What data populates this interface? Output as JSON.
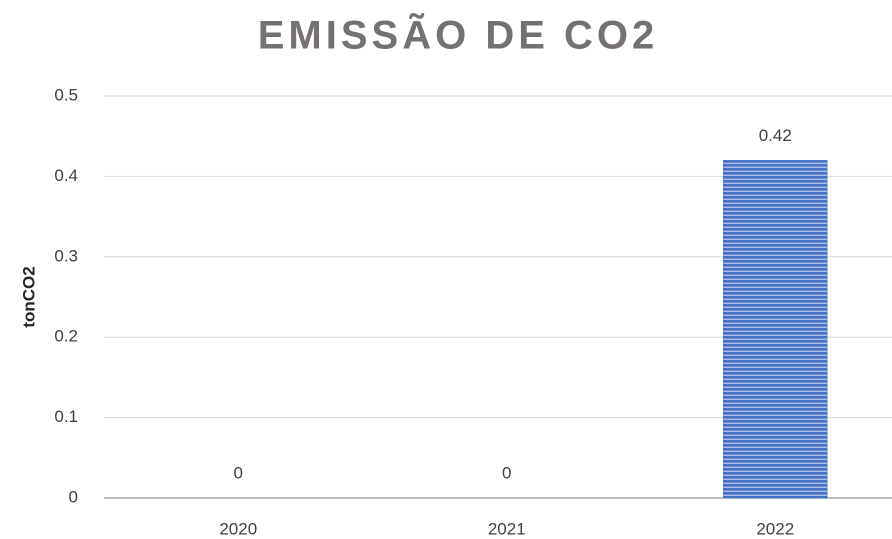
{
  "chart_data": {
    "type": "bar",
    "title": "EMISSÃO DE CO2",
    "y_label": "tonCO2",
    "categories": [
      "2020",
      "2021",
      "2022"
    ],
    "values": [
      0,
      0,
      0.42
    ],
    "color": "#4472c4",
    "ylim": [
      0,
      0.5
    ],
    "yticks": [
      0,
      0.1,
      0.2,
      0.3,
      0.4,
      0.5
    ],
    "grid": true
  }
}
